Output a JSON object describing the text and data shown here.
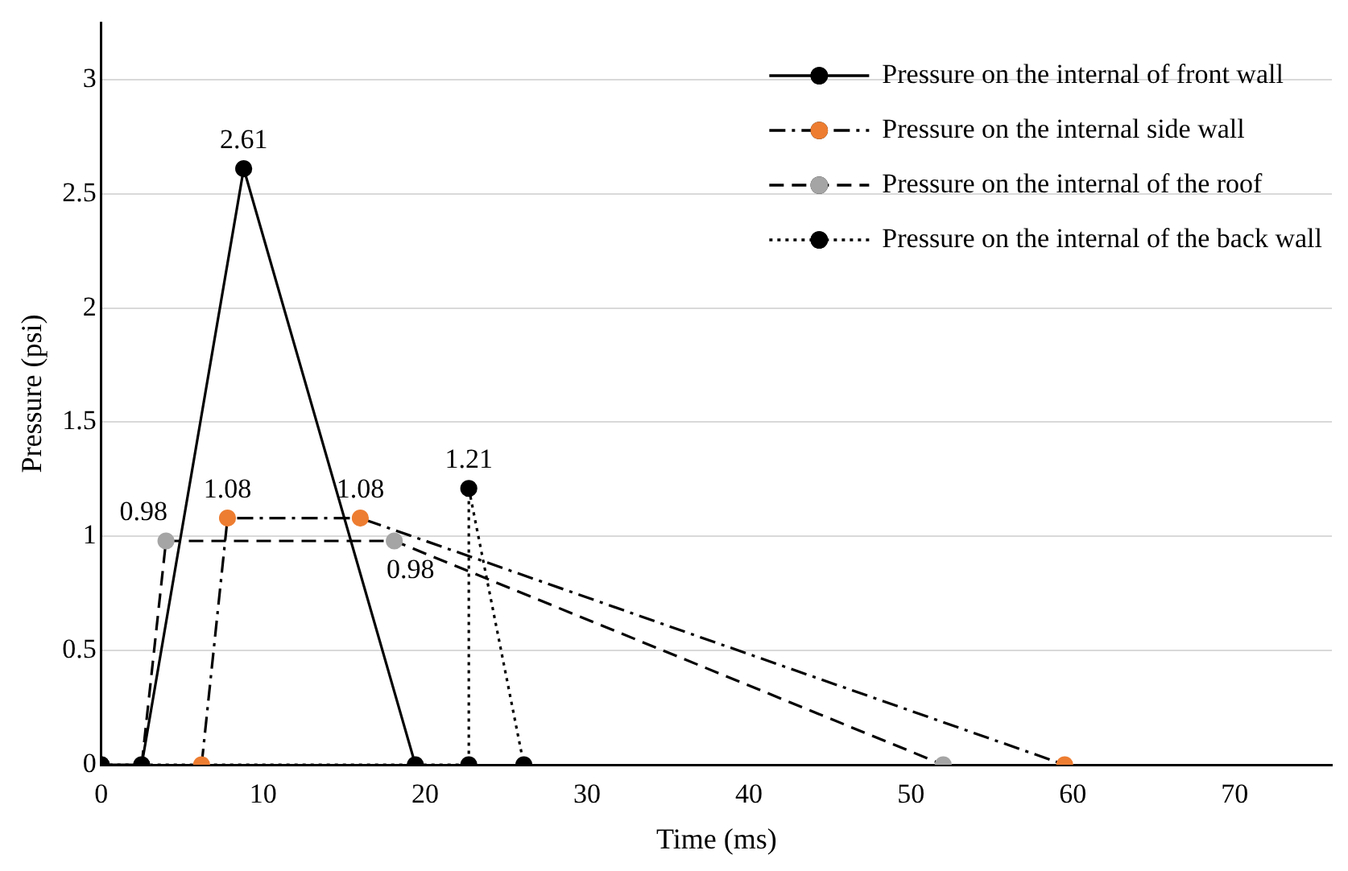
{
  "chart_data": {
    "type": "line",
    "xlabel": "Time (ms)",
    "ylabel": "Pressure (psi)",
    "xlim": [
      0,
      76
    ],
    "xticks": [
      0,
      10,
      20,
      30,
      40,
      50,
      60,
      70
    ],
    "ylim": [
      0,
      3.25
    ],
    "yticks": [
      0,
      0.5,
      1,
      1.5,
      2,
      2.5,
      3
    ],
    "grid": "y",
    "legend": "top right",
    "marker": "circle",
    "series": [
      {
        "name": "Pressure on the internal of front wall",
        "color": "#000000",
        "line_style": "solid",
        "x": [
          0,
          2.5,
          8.8,
          19.4
        ],
        "values": [
          0,
          0,
          2.61,
          0
        ]
      },
      {
        "name": "Pressure on the internal side wall",
        "color": "#ed7d31",
        "line_style": "dashdot",
        "x": [
          6.2,
          7.8,
          16,
          59.5
        ],
        "values": [
          0,
          1.08,
          1.08,
          0
        ]
      },
      {
        "name": "Pressure on the internal of the roof",
        "color": "#a5a5a5",
        "line_style": "dashed",
        "x": [
          2.5,
          4,
          18.1,
          52
        ],
        "values": [
          0,
          0.98,
          0.98,
          0
        ]
      },
      {
        "name": "Pressure on the internal of the back wall",
        "color": "#000000",
        "line_style": "dotted",
        "x": [
          0,
          22.7,
          22.7,
          26.1
        ],
        "values": [
          0,
          0,
          1.21,
          0
        ]
      }
    ],
    "annotations": [
      {
        "text": "2.61",
        "x": 8.8,
        "y": 2.61
      },
      {
        "text": "1.08",
        "x": 7.8,
        "y": 1.08
      },
      {
        "text": "1.08",
        "x": 16,
        "y": 1.08
      },
      {
        "text": "0.98",
        "x": 4,
        "y": 0.98
      },
      {
        "text": "0.98",
        "x": 18.1,
        "y": 0.98
      },
      {
        "text": "1.21",
        "x": 22.7,
        "y": 1.21
      }
    ]
  }
}
